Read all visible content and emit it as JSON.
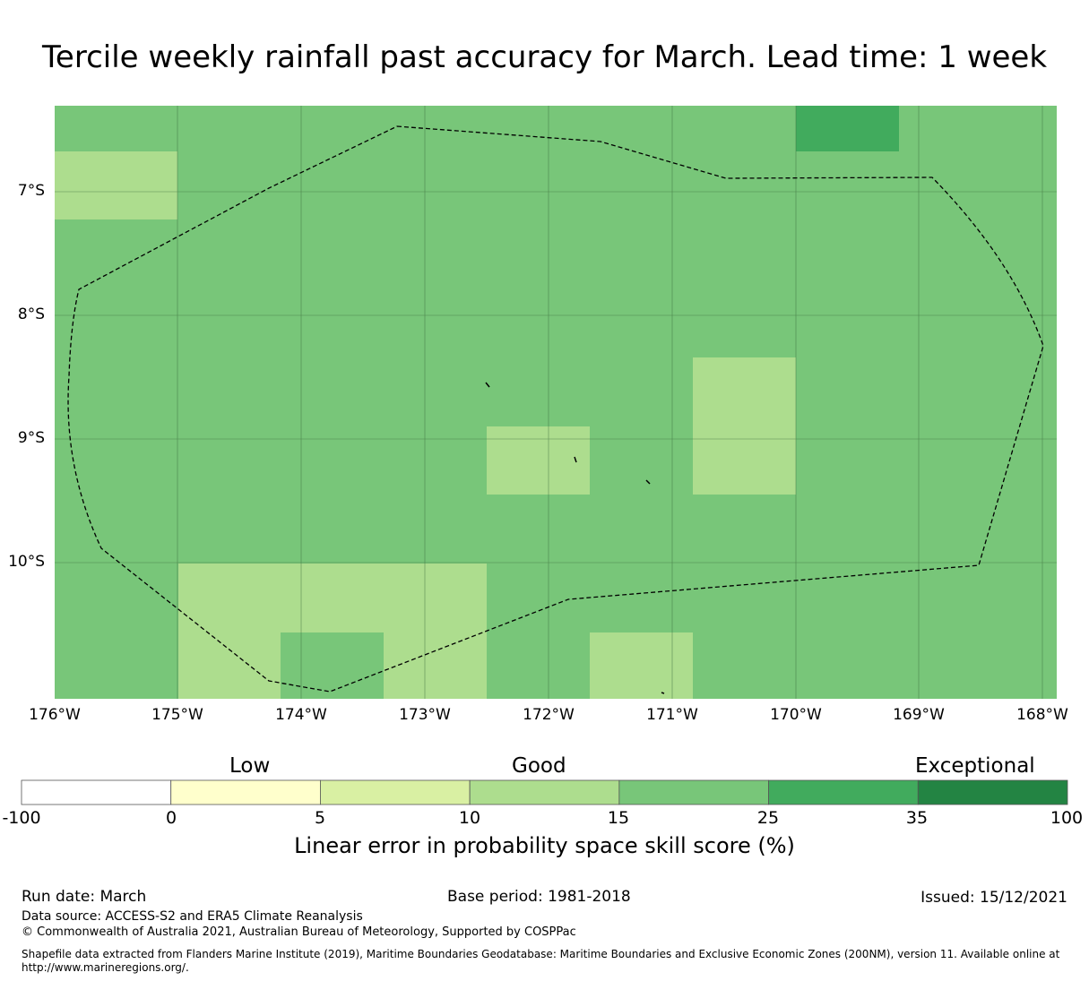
{
  "title": "Tercile weekly rainfall past accuracy for March. Lead time: 1 week",
  "map": {
    "lat_labels": [
      "7°S",
      "8°S",
      "9°S",
      "10°S"
    ],
    "lon_labels": [
      "176°W",
      "175°W",
      "174°W",
      "173°W",
      "172°W",
      "171°W",
      "170°W",
      "169°W",
      "168°W"
    ],
    "background_color": "#78c679"
  },
  "colorbar": {
    "categories": [
      "Low",
      "Good",
      "Exceptional"
    ],
    "ticks": [
      "-100",
      "0",
      "5",
      "10",
      "15",
      "25",
      "35",
      "100"
    ],
    "colors": [
      "#ffffff",
      "#ffffcc",
      "#d9f0a3",
      "#addd8e",
      "#78c679",
      "#41ab5d",
      "#238443"
    ],
    "title": "Linear error in probability space skill score (%)"
  },
  "footer": {
    "run_date": "Run date: March",
    "base_period": "Base period: 1981-2018",
    "issued": "Issued: 15/12/2021",
    "data_source": "Data source: ACCESS-S2 and ERA5 Climate Reanalysis",
    "copyright": "© Commonwealth of Australia 2021, Australian Bureau of Meteorology, Supported by COSPPac",
    "shapefile": "Shapefile data extracted from Flanders Marine Institute (2019), Maritime Boundaries Geodatabase: Maritime Boundaries and Exclusive Economic Zones (200NM), version 11. Available online at http://www.marineregions.org/."
  }
}
